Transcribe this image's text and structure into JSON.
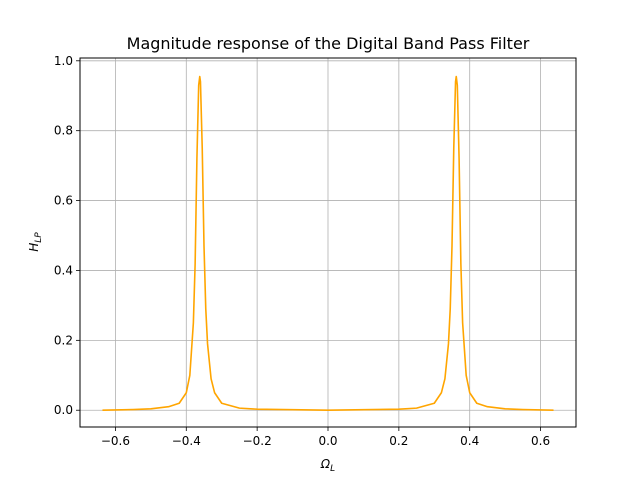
{
  "chart_data": {
    "type": "line",
    "title": "Magnitude response of the Digital Band Pass Filter",
    "xlabel": {
      "main": "Ω",
      "sub": "L"
    },
    "ylabel": {
      "main": "H",
      "sub": "LP"
    },
    "xlim": [
      -0.7,
      0.7
    ],
    "ylim": [
      -0.048,
      1.008
    ],
    "xticks": [
      -0.6,
      -0.4,
      -0.2,
      0.0,
      0.2,
      0.4,
      0.6
    ],
    "xtick_labels": [
      "−0.6",
      "−0.4",
      "−0.2",
      "0.0",
      "0.2",
      "0.4",
      "0.6"
    ],
    "yticks": [
      0.0,
      0.2,
      0.4,
      0.6,
      0.8,
      1.0
    ],
    "ytick_labels": [
      "0.0",
      "0.2",
      "0.4",
      "0.6",
      "0.8",
      "1.0"
    ],
    "grid": true,
    "series": [
      {
        "color": "#ffa500",
        "x_range": [
          -0.6366,
          0.6366
        ],
        "x": [
          -0.6366,
          -0.55,
          -0.5,
          -0.45,
          -0.42,
          -0.4,
          -0.39,
          -0.38,
          -0.375,
          -0.37,
          -0.365,
          -0.362,
          -0.36,
          -0.355,
          -0.35,
          -0.345,
          -0.34,
          -0.33,
          -0.32,
          -0.3,
          -0.25,
          -0.2,
          0.0,
          0.2,
          0.25,
          0.3,
          0.32,
          0.33,
          0.34,
          0.345,
          0.35,
          0.355,
          0.36,
          0.362,
          0.365,
          0.37,
          0.375,
          0.38,
          0.39,
          0.4,
          0.42,
          0.45,
          0.5,
          0.55,
          0.6366
        ],
        "y": [
          0.0,
          0.002,
          0.004,
          0.01,
          0.02,
          0.05,
          0.1,
          0.25,
          0.42,
          0.72,
          0.93,
          0.955,
          0.94,
          0.75,
          0.47,
          0.29,
          0.19,
          0.09,
          0.05,
          0.02,
          0.006,
          0.003,
          0.0,
          0.003,
          0.006,
          0.02,
          0.05,
          0.09,
          0.19,
          0.29,
          0.47,
          0.75,
          0.94,
          0.955,
          0.93,
          0.72,
          0.42,
          0.25,
          0.1,
          0.05,
          0.02,
          0.01,
          0.004,
          0.002,
          0.0
        ]
      }
    ]
  }
}
